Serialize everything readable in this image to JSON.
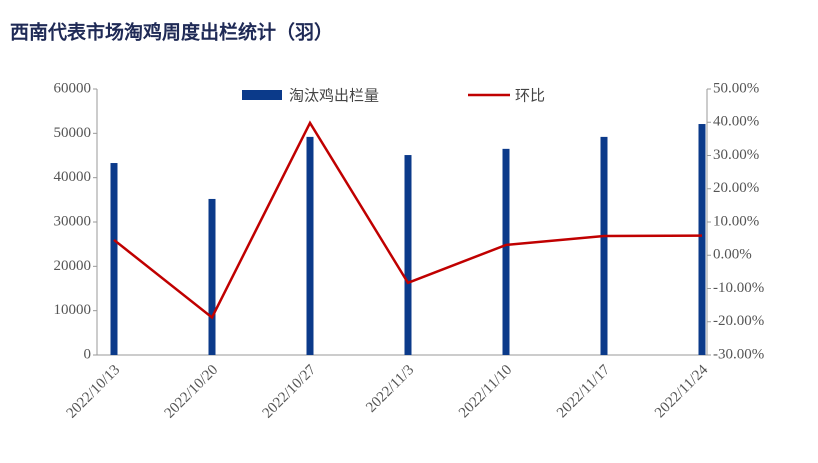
{
  "chart_data": {
    "type": "bar-line",
    "title": "西南代表市场淘鸡周度出栏统计（羽）",
    "categories": [
      "2022/10/13",
      "2022/10/20",
      "2022/10/27",
      "2022/11/3",
      "2022/11/10",
      "2022/11/17",
      "2022/11/24"
    ],
    "series": [
      {
        "name": "淘汰鸡出栏量",
        "type": "bar",
        "color": "#0b3a8a",
        "values": [
          43300,
          35200,
          49200,
          45100,
          46500,
          49200,
          52100
        ]
      },
      {
        "name": "环比",
        "type": "line",
        "axis": "y2",
        "color": "#c00000",
        "values": [
          4.6,
          -18.7,
          39.8,
          -8.3,
          3.1,
          5.8,
          5.9
        ]
      }
    ],
    "ylim": [
      0,
      60000
    ],
    "yticks": [
      0,
      10000,
      20000,
      30000,
      40000,
      50000,
      60000
    ],
    "y2lim": [
      -30,
      50
    ],
    "y2ticks": [
      {
        "value": -30,
        "label": "-30.00%"
      },
      {
        "value": -20,
        "label": "-20.00%"
      },
      {
        "value": -10,
        "label": "-10.00%"
      },
      {
        "value": 0,
        "label": "0.00%"
      },
      {
        "value": 10,
        "label": "10.00%"
      },
      {
        "value": 20,
        "label": "20.00%"
      },
      {
        "value": 30,
        "label": "30.00%"
      },
      {
        "value": 40,
        "label": "40.00%"
      },
      {
        "value": 50,
        "label": "50.00%"
      }
    ],
    "legend": "top"
  }
}
